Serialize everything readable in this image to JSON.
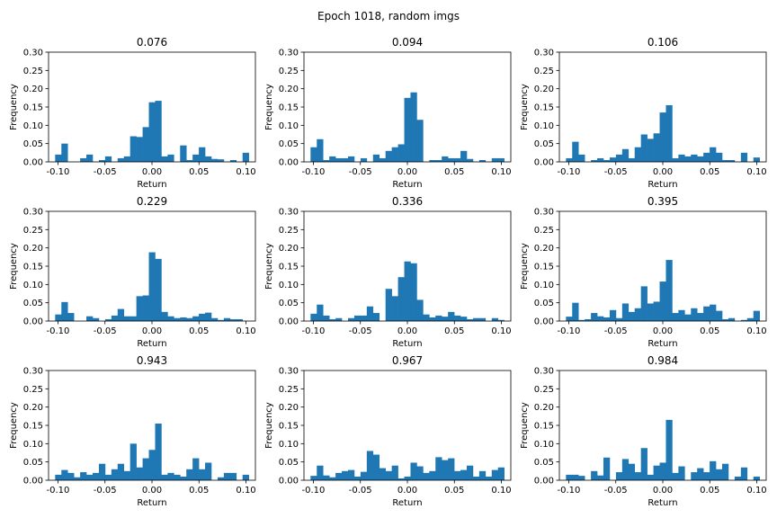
{
  "figure": {
    "suptitle": "Epoch 1018, random imgs"
  },
  "colors": {
    "bar": "#1f77b4",
    "axes": "#000000",
    "background": "#ffffff"
  },
  "chart_data": [
    {
      "type": "bar",
      "title": "0.076",
      "xlabel": "Return",
      "ylabel": "Frequency",
      "xlim": [
        -0.11,
        0.11
      ],
      "ylim": [
        0,
        0.3
      ],
      "xticks": [
        "-0.10",
        "-0.05",
        "0.00",
        "0.05",
        "0.10"
      ],
      "yticks": [
        "0.00",
        "0.05",
        "0.10",
        "0.15",
        "0.20",
        "0.25",
        "0.30"
      ],
      "bin_edges": [
        -0.103,
        0.103
      ],
      "values": [
        0.02,
        0.05,
        0,
        0,
        0.01,
        0.02,
        0,
        0.005,
        0.015,
        0,
        0.01,
        0.015,
        0.07,
        0.068,
        0.095,
        0.163,
        0.167,
        0.015,
        0.02,
        0,
        0.045,
        0.005,
        0.02,
        0.04,
        0.015,
        0.008,
        0.007,
        0,
        0.005,
        0,
        0.025
      ]
    },
    {
      "type": "bar",
      "title": "0.094",
      "xlabel": "Return",
      "ylabel": "Frequency",
      "xlim": [
        -0.11,
        0.11
      ],
      "ylim": [
        0,
        0.3
      ],
      "xticks": [
        "-0.10",
        "-0.05",
        "0.00",
        "0.05",
        "0.10"
      ],
      "yticks": [
        "0.00",
        "0.05",
        "0.10",
        "0.15",
        "0.20",
        "0.25",
        "0.30"
      ],
      "bin_edges": [
        -0.103,
        0.103
      ],
      "values": [
        0.04,
        0.062,
        0.005,
        0.015,
        0.01,
        0.01,
        0.015,
        0,
        0.01,
        0,
        0.02,
        0.01,
        0.03,
        0.04,
        0.048,
        0.175,
        0.19,
        0.115,
        0,
        0.005,
        0.005,
        0.015,
        0.01,
        0.01,
        0.03,
        0.008,
        0,
        0.005,
        0,
        0.01,
        0.01
      ]
    },
    {
      "type": "bar",
      "title": "0.106",
      "xlabel": "Return",
      "ylabel": "Frequency",
      "xlim": [
        -0.11,
        0.11
      ],
      "ylim": [
        0,
        0.3
      ],
      "xticks": [
        "-0.10",
        "-0.05",
        "0.00",
        "0.05",
        "0.10"
      ],
      "yticks": [
        "0.00",
        "0.05",
        "0.10",
        "0.15",
        "0.20",
        "0.25",
        "0.30"
      ],
      "bin_edges": [
        -0.103,
        0.103
      ],
      "values": [
        0.01,
        0.055,
        0.02,
        0,
        0.005,
        0.01,
        0.005,
        0.012,
        0.02,
        0.035,
        0.01,
        0.04,
        0.075,
        0.063,
        0.078,
        0.135,
        0.155,
        0.01,
        0.02,
        0.015,
        0.02,
        0.015,
        0.025,
        0.04,
        0.025,
        0.005,
        0.005,
        0,
        0.025,
        0,
        0.012
      ]
    },
    {
      "type": "bar",
      "title": "0.229",
      "xlabel": "Return",
      "ylabel": "Frequency",
      "xlim": [
        -0.11,
        0.11
      ],
      "ylim": [
        0,
        0.3
      ],
      "xticks": [
        "-0.10",
        "-0.05",
        "0.00",
        "0.05",
        "0.10"
      ],
      "yticks": [
        "0.00",
        "0.05",
        "0.10",
        "0.15",
        "0.20",
        "0.25",
        "0.30"
      ],
      "bin_edges": [
        -0.103,
        0.103
      ],
      "values": [
        0.018,
        0.052,
        0.022,
        0,
        0,
        0.013,
        0.008,
        0,
        0.005,
        0.015,
        0.033,
        0.013,
        0.013,
        0.068,
        0.07,
        0.188,
        0.17,
        0.025,
        0.013,
        0.008,
        0.01,
        0.008,
        0.013,
        0.02,
        0.023,
        0.008,
        0.003,
        0.008,
        0.005,
        0.005,
        0
      ]
    },
    {
      "type": "bar",
      "title": "0.336",
      "xlabel": "Return",
      "ylabel": "Frequency",
      "xlim": [
        -0.11,
        0.11
      ],
      "ylim": [
        0,
        0.3
      ],
      "xticks": [
        "-0.10",
        "-0.05",
        "0.00",
        "0.05",
        "0.10"
      ],
      "yticks": [
        "0.00",
        "0.05",
        "0.10",
        "0.15",
        "0.20",
        "0.25",
        "0.30"
      ],
      "bin_edges": [
        -0.103,
        0.103
      ],
      "values": [
        0.02,
        0.045,
        0.015,
        0.005,
        0.008,
        0,
        0.008,
        0.015,
        0.015,
        0.04,
        0.022,
        0,
        0.088,
        0.068,
        0.12,
        0.163,
        0.158,
        0.058,
        0.018,
        0.01,
        0.015,
        0.012,
        0.025,
        0.015,
        0.012,
        0.005,
        0.008,
        0.008,
        0,
        0.008,
        0.003
      ]
    },
    {
      "type": "bar",
      "title": "0.395",
      "xlabel": "Return",
      "ylabel": "Frequency",
      "xlim": [
        -0.11,
        0.11
      ],
      "ylim": [
        0,
        0.3
      ],
      "xticks": [
        "-0.10",
        "-0.05",
        "0.00",
        "0.05",
        "0.10"
      ],
      "yticks": [
        "0.00",
        "0.05",
        "0.10",
        "0.15",
        "0.20",
        "0.25",
        "0.30"
      ],
      "bin_edges": [
        -0.103,
        0.103
      ],
      "values": [
        0.012,
        0.05,
        0.003,
        0.005,
        0.022,
        0.013,
        0.01,
        0.03,
        0.008,
        0.048,
        0.025,
        0.035,
        0.095,
        0.048,
        0.053,
        0.108,
        0.167,
        0.022,
        0.03,
        0.018,
        0.035,
        0.022,
        0.04,
        0.045,
        0.028,
        0.005,
        0.008,
        0,
        0.003,
        0.008,
        0.028
      ]
    },
    {
      "type": "bar",
      "title": "0.943",
      "xlabel": "Return",
      "ylabel": "Frequency",
      "xlim": [
        -0.11,
        0.11
      ],
      "ylim": [
        0,
        0.3
      ],
      "xticks": [
        "-0.10",
        "-0.05",
        "0.00",
        "0.05",
        "0.10"
      ],
      "yticks": [
        "0.00",
        "0.05",
        "0.10",
        "0.15",
        "0.20",
        "0.25",
        "0.30"
      ],
      "bin_edges": [
        -0.103,
        0.103
      ],
      "values": [
        0.015,
        0.028,
        0.02,
        0.008,
        0.022,
        0.015,
        0.02,
        0.045,
        0.015,
        0.03,
        0.045,
        0.025,
        0.1,
        0.035,
        0.06,
        0.083,
        0.155,
        0.015,
        0.02,
        0.015,
        0.01,
        0.03,
        0.06,
        0.03,
        0.048,
        0,
        0.008,
        0.02,
        0.02,
        0,
        0.015
      ]
    },
    {
      "type": "bar",
      "title": "0.967",
      "xlabel": "Return",
      "ylabel": "Frequency",
      "xlim": [
        -0.11,
        0.11
      ],
      "ylim": [
        0,
        0.3
      ],
      "xticks": [
        "-0.10",
        "-0.05",
        "0.00",
        "0.05",
        "0.10"
      ],
      "yticks": [
        "0.00",
        "0.05",
        "0.10",
        "0.15",
        "0.20",
        "0.25",
        "0.30"
      ],
      "bin_edges": [
        -0.103,
        0.103
      ],
      "values": [
        0.012,
        0.04,
        0.013,
        0.008,
        0.02,
        0.025,
        0.028,
        0.01,
        0.023,
        0.08,
        0.07,
        0.033,
        0.025,
        0.04,
        0.005,
        0.01,
        0.048,
        0.038,
        0.02,
        0.025,
        0.063,
        0.055,
        0.06,
        0.025,
        0.028,
        0.04,
        0.01,
        0.025,
        0.01,
        0.028,
        0.035
      ]
    },
    {
      "type": "bar",
      "title": "0.984",
      "xlabel": "Return",
      "ylabel": "Frequency",
      "xlim": [
        -0.11,
        0.11
      ],
      "ylim": [
        0,
        0.3
      ],
      "xticks": [
        "-0.10",
        "-0.05",
        "0.00",
        "0.05",
        "0.10"
      ],
      "yticks": [
        "0.00",
        "0.05",
        "0.10",
        "0.15",
        "0.20",
        "0.25",
        "0.30"
      ],
      "bin_edges": [
        -0.103,
        0.103
      ],
      "values": [
        0.015,
        0.015,
        0.012,
        0,
        0.025,
        0.013,
        0.062,
        0,
        0.022,
        0.058,
        0.045,
        0.022,
        0.088,
        0.015,
        0.04,
        0.048,
        0.165,
        0.02,
        0.038,
        0,
        0.022,
        0.033,
        0.022,
        0.052,
        0.03,
        0.045,
        0,
        0.01,
        0.035,
        0,
        0.01
      ]
    }
  ]
}
